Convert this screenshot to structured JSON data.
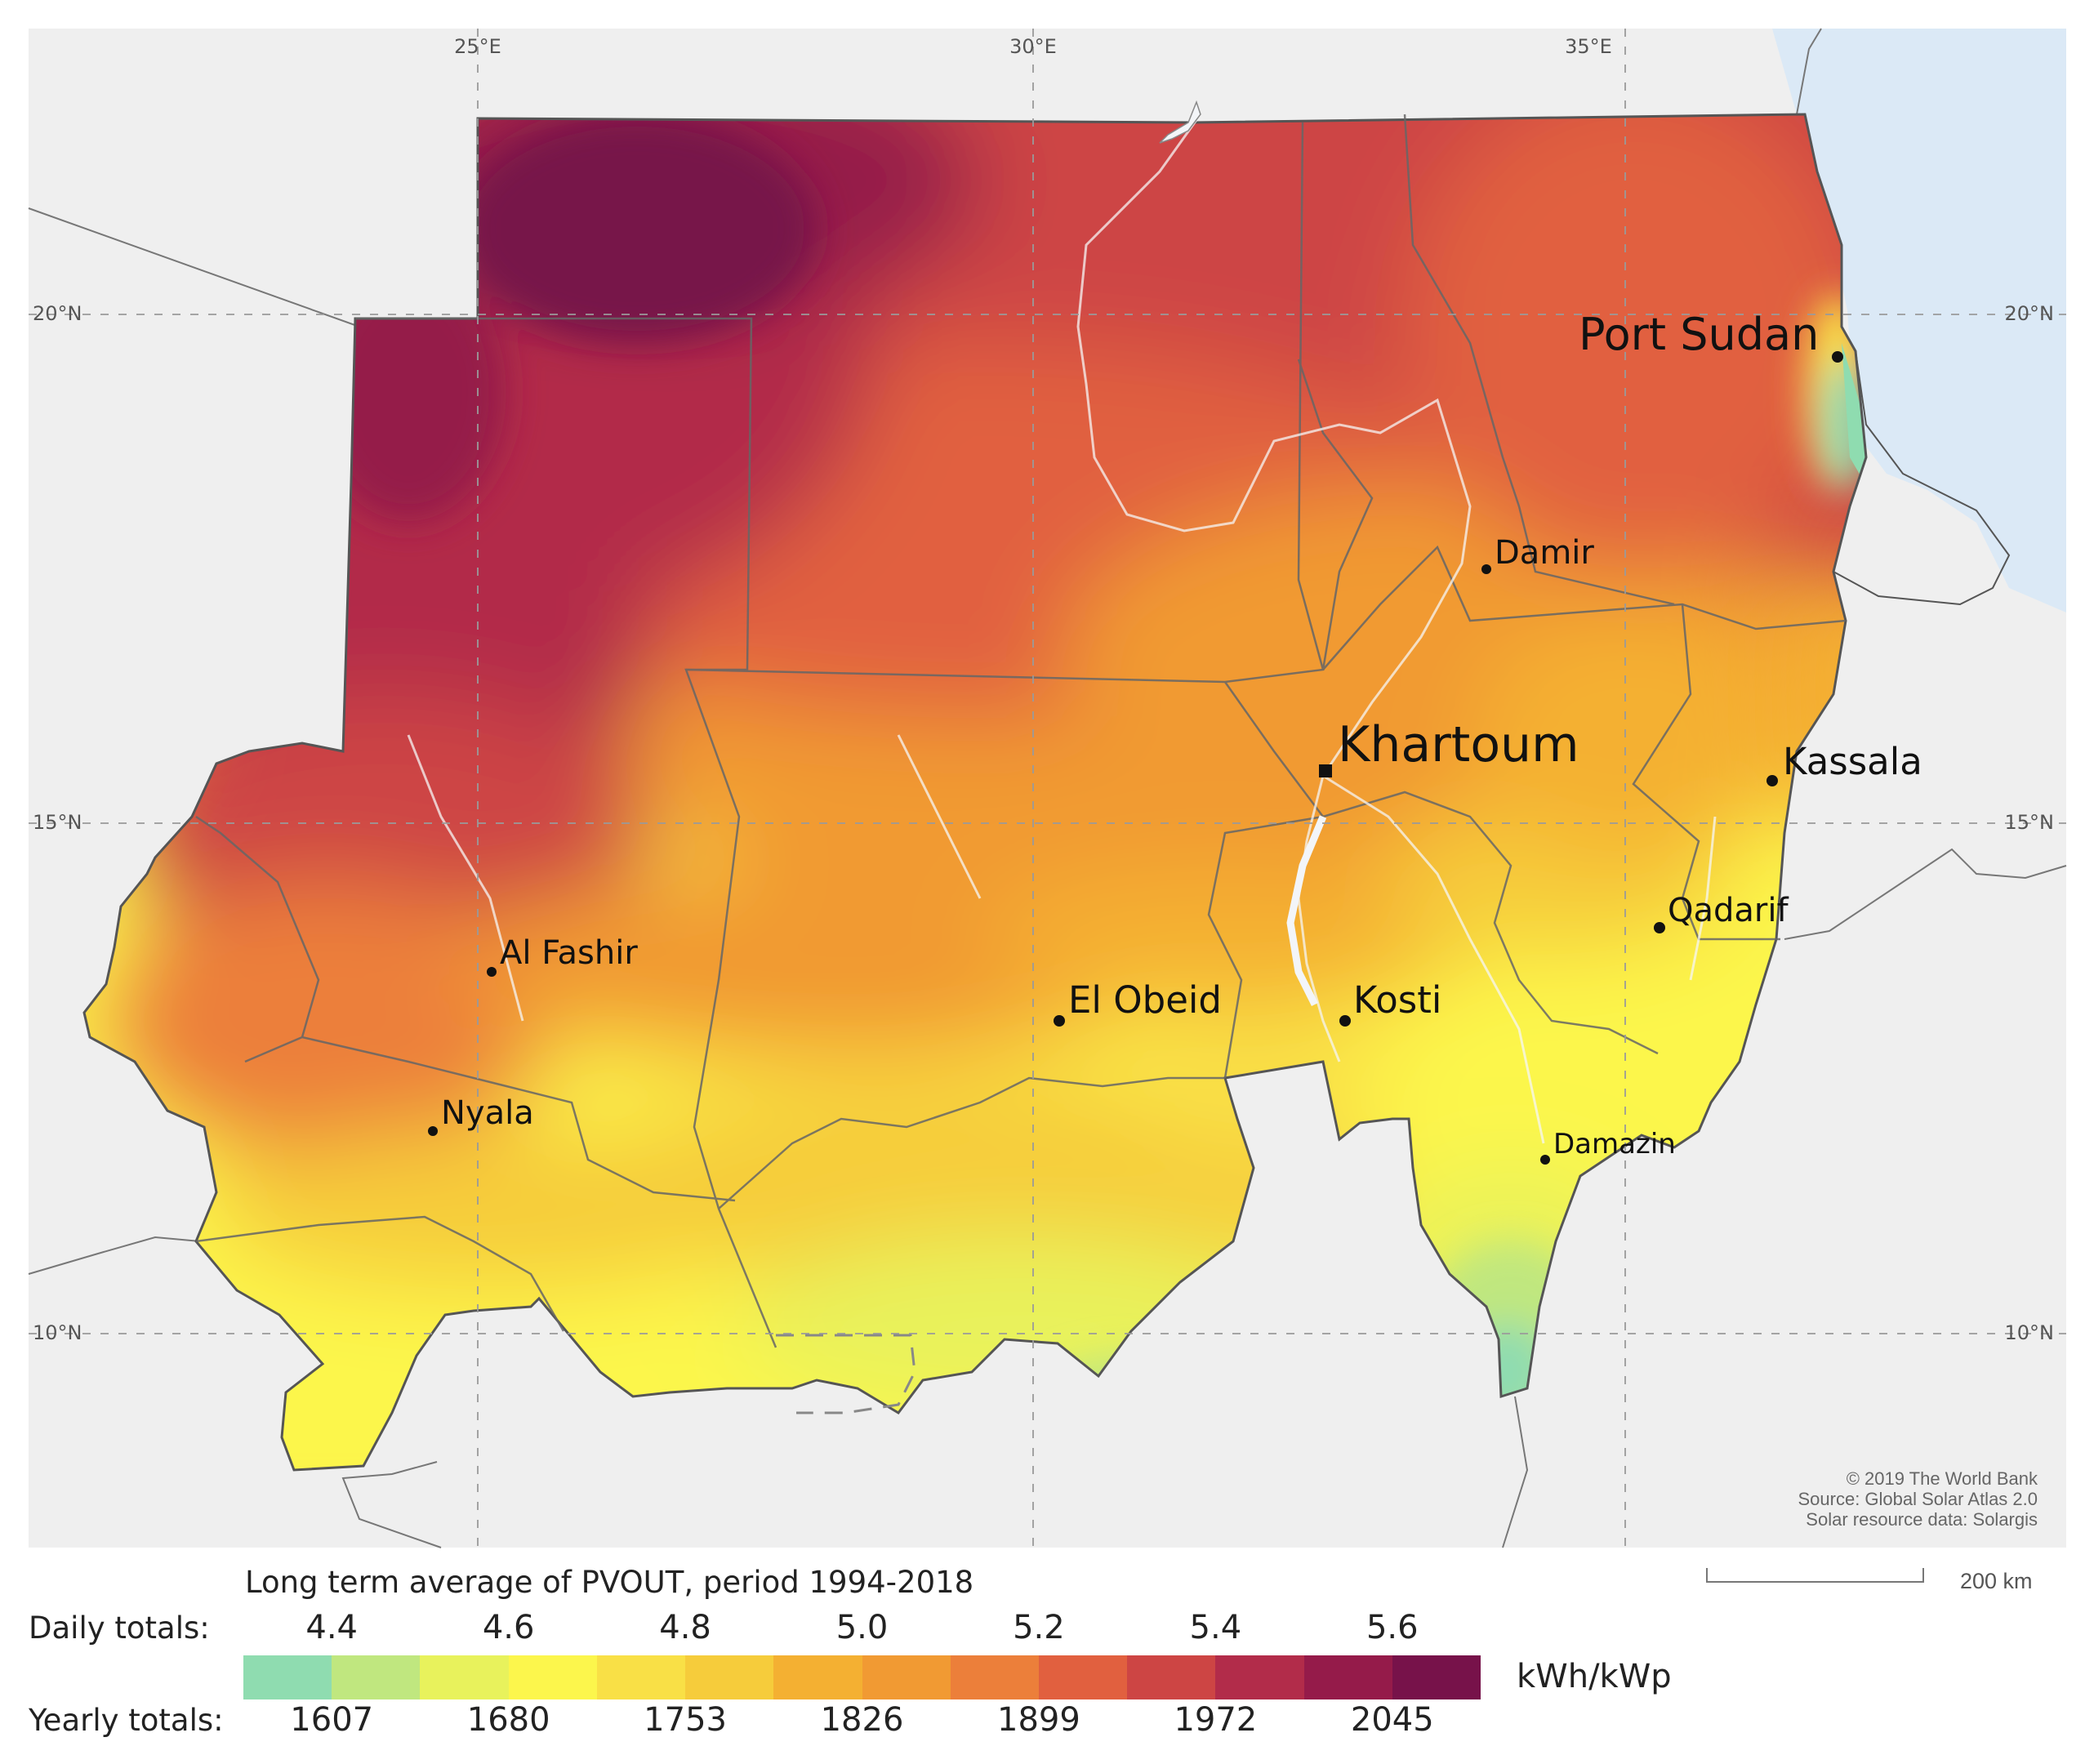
{
  "map": {
    "grid_labels": {
      "lon_25": "25°E",
      "lon_30": "30°E",
      "lon_35": "35°E",
      "lat_20_left": "20°N",
      "lat_20_right": "20°N",
      "lat_15_left": "15°N",
      "lat_15_right": "15°N",
      "lat_10_left": "10°N",
      "lat_10_right": "10°N"
    },
    "cities": {
      "port_sudan": "Port Sudan",
      "damir": "Damir",
      "khartoum": "Khartoum",
      "kassala": "Kassala",
      "qadarif": "Qadarif",
      "al_fashir": "Al Fashir",
      "el_obeid": "El Obeid",
      "kosti": "Kosti",
      "nyala": "Nyala",
      "damazin": "Damazin"
    },
    "credits": {
      "line1": "© 2019 The World Bank",
      "line2": "Source: Global Solar Atlas 2.0",
      "line3": "Solar resource data: Solargis"
    },
    "scale_bar_label": "200 km",
    "colors": {
      "land_background": "#efefef",
      "sea": "#dbe9f6"
    }
  },
  "legend": {
    "title": "Long term average of PVOUT, period 1994-2018",
    "daily_label": "Daily totals:",
    "daily_values": [
      "4.4",
      "4.6",
      "4.8",
      "5.0",
      "5.2",
      "5.4",
      "5.6"
    ],
    "yearly_label": "Yearly totals:",
    "yearly_values": [
      "1607",
      "1680",
      "1753",
      "1826",
      "1899",
      "1972",
      "2045"
    ],
    "unit": "kWh/kWp",
    "colors": [
      "#8fdcb0",
      "#c0e77f",
      "#e8f25c",
      "#fcf64c",
      "#f9e046",
      "#f6cc3b",
      "#f4b032",
      "#f19a33",
      "#ec7f3a",
      "#e1603f",
      "#cd4544",
      "#b22c4a",
      "#951b4a",
      "#77124a"
    ]
  }
}
